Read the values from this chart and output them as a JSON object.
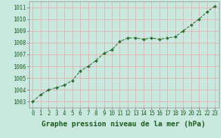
{
  "x": [
    0,
    1,
    2,
    3,
    4,
    5,
    6,
    7,
    8,
    9,
    10,
    11,
    12,
    13,
    14,
    15,
    16,
    17,
    18,
    19,
    20,
    21,
    22,
    23
  ],
  "y": [
    1003.0,
    1003.6,
    1004.0,
    1004.2,
    1004.4,
    1004.8,
    1005.6,
    1006.0,
    1006.5,
    1007.1,
    1007.4,
    1008.1,
    1008.4,
    1008.4,
    1008.3,
    1008.4,
    1008.3,
    1008.4,
    1008.5,
    1009.0,
    1009.5,
    1010.0,
    1010.6,
    1011.1
  ],
  "line_color": "#2d6a2d",
  "marker_color": "#2d6a2d",
  "bg_color": "#c8e8e0",
  "grid_color": "#e8a0a0",
  "axis_label_color": "#1a5c1a",
  "xlabel": "Graphe pression niveau de la mer (hPa)",
  "ylim": [
    1002.5,
    1011.5
  ],
  "yticks": [
    1003,
    1004,
    1005,
    1006,
    1007,
    1008,
    1009,
    1010,
    1011
  ],
  "xticks": [
    0,
    1,
    2,
    3,
    4,
    5,
    6,
    7,
    8,
    9,
    10,
    11,
    12,
    13,
    14,
    15,
    16,
    17,
    18,
    19,
    20,
    21,
    22,
    23
  ],
  "tick_fontsize": 5.5,
  "xlabel_fontsize": 7.5
}
